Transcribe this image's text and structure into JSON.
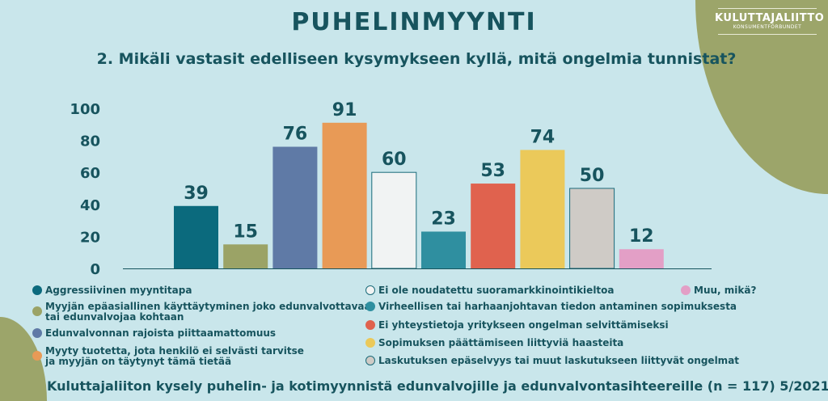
{
  "logo": {
    "name": "KULUTTAJALIITTO",
    "sub": "KONSUMENTFÖRBUNDET"
  },
  "title": "PUHELINMYYNTI",
  "subtitle": "2. Mikäli vastasit edelliseen kysymykseen kyllä, mitä ongelmia tunnistat?",
  "footer": "Kuluttajaliiton kysely puhelin- ja kotimyynnistä edunvalvojille ja edunvalvontasihteereille (n = 117) 5/2021",
  "chart_data": {
    "type": "bar",
    "ylim": [
      0,
      100
    ],
    "yticks": [
      "0",
      "20",
      "40",
      "60",
      "80",
      "100"
    ],
    "grid": false,
    "legend_placement": "bottom",
    "categories": [
      {
        "label": "Aggressiivinen myyntitapa",
        "value": 39,
        "color": "#0b6a7d"
      },
      {
        "label": "Myyjän epäasiallinen käyttäytyminen joko edunvalvottavaa\ntai edunvalvojaa kohtaan",
        "value": 15,
        "color": "#9ba366"
      },
      {
        "label": "Edunvalvonnan rajoista piittaamattomuus",
        "value": 76,
        "color": "#5f7aa6"
      },
      {
        "label": "Myyty tuotetta, jota henkilö ei selvästi tarvitse\nja myyjän on täytynyt tämä tietää",
        "value": 91,
        "color": "#e89a56"
      },
      {
        "label": "Ei ole noudatettu suoramarkkinointikieltoa",
        "value": 60,
        "color": "#f1f3f3"
      },
      {
        "label": "Virheellisen tai harhaanjohtavan tiedon antaminen sopimuksesta",
        "value": 23,
        "color": "#2f8fa0"
      },
      {
        "label": "Ei yhteystietoja yritykseen ongelman selvittämiseksi",
        "value": 53,
        "color": "#e0624e"
      },
      {
        "label": "Sopimuksen päättämiseen liittyviä haasteita",
        "value": 74,
        "color": "#ebc95a"
      },
      {
        "label": "Laskutuksen epäselvyys tai muut laskutukseen liittyvät ongelmat",
        "value": 50,
        "color": "#cfcbc6"
      },
      {
        "label": "Muu, mikä?",
        "value": 12,
        "color": "#e39fc6"
      }
    ]
  }
}
